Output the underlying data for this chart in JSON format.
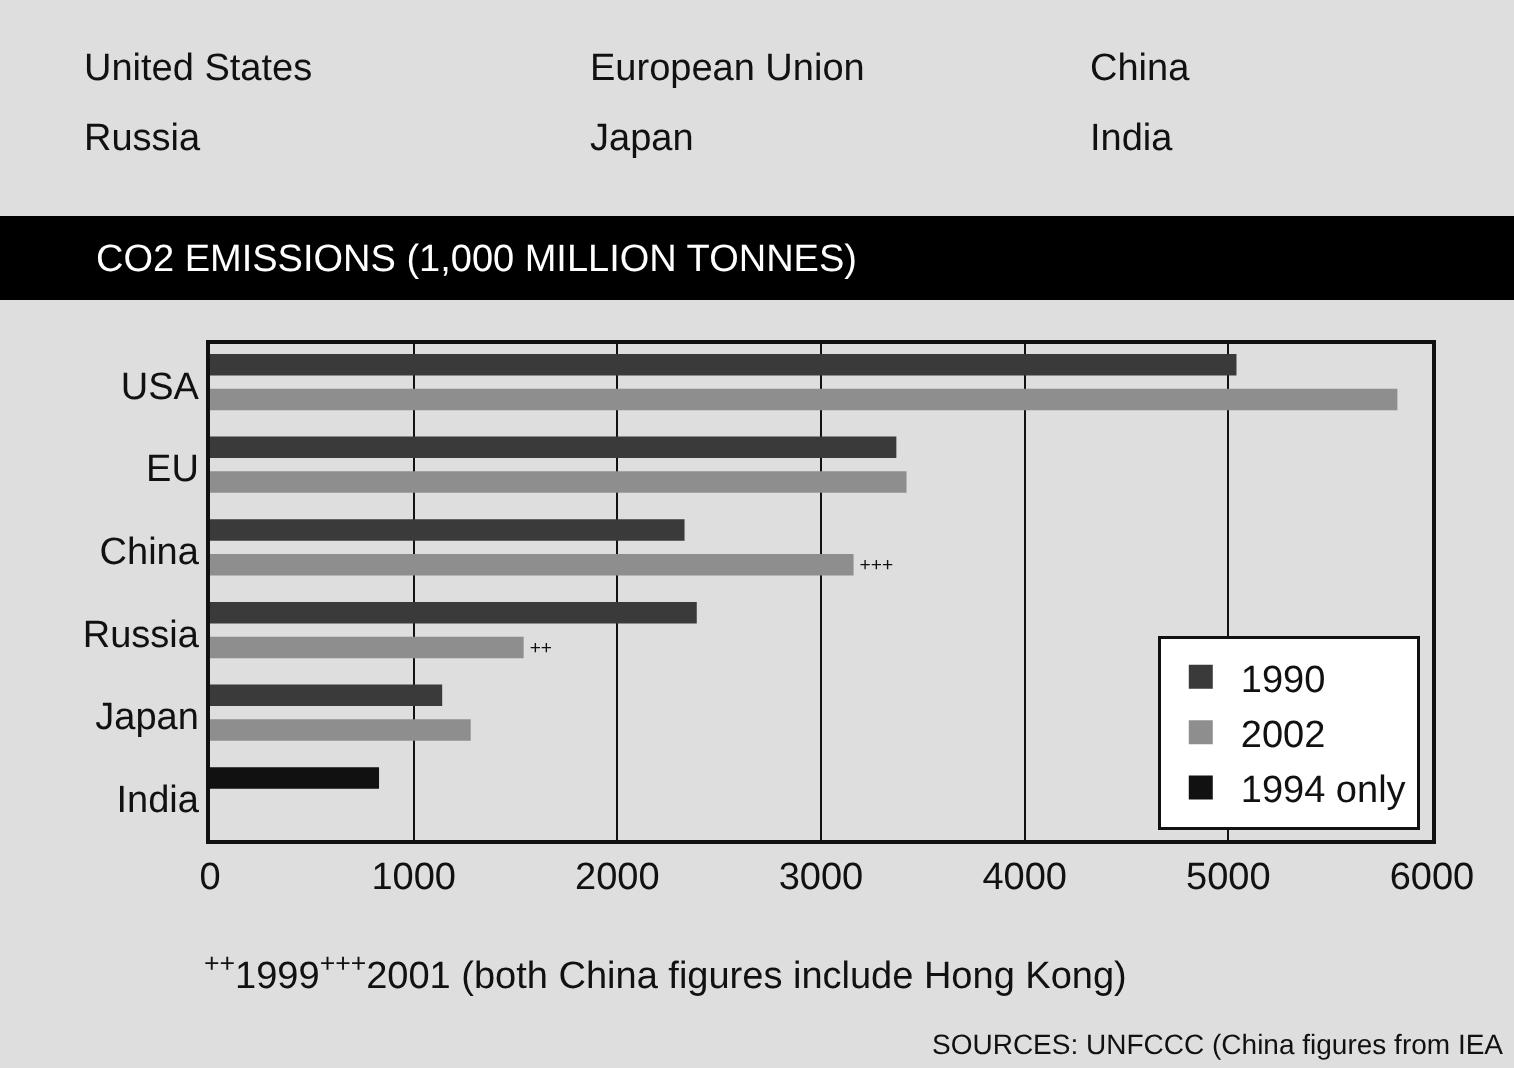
{
  "chart_data": {
    "type": "bar",
    "orientation": "horizontal",
    "title": "CO2 EMISSIONS (1,000 MILLION TONNES)",
    "categories": [
      "USA",
      "EU",
      "China",
      "Russia",
      "Japan",
      "India"
    ],
    "series": [
      {
        "name": "1990",
        "color": "#3a3a3a",
        "values": [
          5040,
          3370,
          2330,
          2390,
          1140,
          null
        ]
      },
      {
        "name": "2002",
        "color": "#8e8e8e",
        "values": [
          5830,
          3420,
          3160,
          1540,
          1280,
          null
        ],
        "value_labels": [
          null,
          null,
          "+++",
          "++",
          null,
          null
        ]
      },
      {
        "name": "1994 only",
        "color": "#111111",
        "values": [
          null,
          null,
          null,
          null,
          null,
          830
        ]
      }
    ],
    "xlim": [
      0,
      6000
    ],
    "xticks": [
      0,
      1000,
      2000,
      3000,
      4000,
      5000,
      6000
    ],
    "grid": "x",
    "legend": "bottom right",
    "annotations": [
      "United States",
      "European Union",
      "China",
      "Russia",
      "Japan",
      "India",
      "$^{++}$1999$^{+++}$2001 (both China figures include Hong Kong)",
      "SOURCES: UNFCCC (China figures from IEA"
    ]
  }
}
